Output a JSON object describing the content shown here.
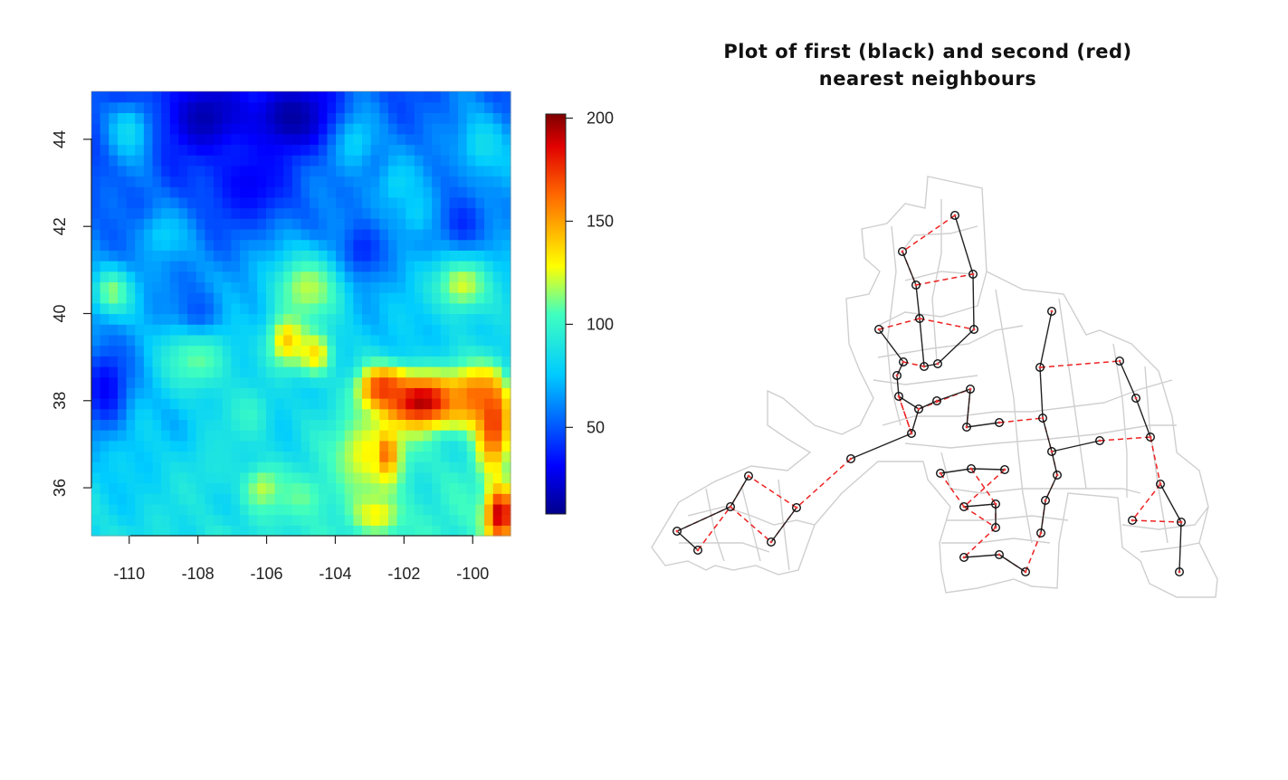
{
  "chart_data": [
    {
      "type": "heatmap",
      "title": "",
      "xlabel": "",
      "ylabel": "",
      "xlim": [
        -111.1,
        -98.9
      ],
      "ylim": [
        34.9,
        45.1
      ],
      "x_ticks": [
        -110,
        -108,
        -106,
        -104,
        -102,
        -100
      ],
      "x_tick_labels": [
        "-110",
        "-108",
        "-106",
        "-104",
        "-102",
        "-100"
      ],
      "y_ticks": [
        36,
        38,
        40,
        42,
        44
      ],
      "y_tick_labels": [
        "36",
        "38",
        "40",
        "42",
        "44"
      ],
      "grid": false,
      "colorbar": {
        "placement": "right",
        "range": [
          8,
          202
        ],
        "ticks": [
          50,
          100,
          150,
          200
        ],
        "tick_labels": [
          "50",
          "100",
          "150",
          "200"
        ]
      },
      "grid_size": {
        "cols": 48,
        "rows": 42
      },
      "hotspots": [
        {
          "lon": -101.5,
          "lat": 38.0,
          "value": 195,
          "sx": 0.9,
          "sy": 0.45
        },
        {
          "lon": -102.6,
          "lat": 38.3,
          "value": 175,
          "sx": 0.5,
          "sy": 0.35
        },
        {
          "lon": -100.0,
          "lat": 38.1,
          "value": 160,
          "sx": 0.5,
          "sy": 0.45
        },
        {
          "lon": -99.4,
          "lat": 37.5,
          "value": 175,
          "sx": 0.35,
          "sy": 0.8
        },
        {
          "lon": -99.2,
          "lat": 35.4,
          "value": 195,
          "sx": 0.3,
          "sy": 0.45
        },
        {
          "lon": -102.5,
          "lat": 36.8,
          "value": 165,
          "sx": 0.25,
          "sy": 0.45
        },
        {
          "lon": -105.4,
          "lat": 39.4,
          "value": 140,
          "sx": 0.4,
          "sy": 0.45
        },
        {
          "lon": -104.6,
          "lat": 39.1,
          "value": 135,
          "sx": 0.4,
          "sy": 0.4
        },
        {
          "lon": -103.0,
          "lat": 36.8,
          "value": 130,
          "sx": 0.8,
          "sy": 0.7
        },
        {
          "lon": -100.3,
          "lat": 40.7,
          "value": 125,
          "sx": 0.6,
          "sy": 0.5
        },
        {
          "lon": -104.8,
          "lat": 40.6,
          "value": 120,
          "sx": 0.8,
          "sy": 0.6
        },
        {
          "lon": -108.0,
          "lat": 39.0,
          "value": 110,
          "sx": 0.8,
          "sy": 0.6
        },
        {
          "lon": -110.5,
          "lat": 40.5,
          "value": 115,
          "sx": 0.45,
          "sy": 0.4
        },
        {
          "lon": -106.5,
          "lat": 37.7,
          "value": 100,
          "sx": 0.5,
          "sy": 0.5
        },
        {
          "lon": -106.1,
          "lat": 36.0,
          "value": 120,
          "sx": 0.4,
          "sy": 0.35
        },
        {
          "lon": -102.8,
          "lat": 35.4,
          "value": 130,
          "sx": 0.5,
          "sy": 0.3
        },
        {
          "lon": -105.0,
          "lat": 35.8,
          "value": 110,
          "sx": 0.6,
          "sy": 0.4
        },
        {
          "lon": -110.0,
          "lat": 44.2,
          "value": 85,
          "sx": 0.5,
          "sy": 0.5
        },
        {
          "lon": -103.5,
          "lat": 44.0,
          "value": 85,
          "sx": 0.5,
          "sy": 0.5
        },
        {
          "lon": -99.7,
          "lat": 43.9,
          "value": 85,
          "sx": 0.5,
          "sy": 0.5
        },
        {
          "lon": -101.6,
          "lat": 42.3,
          "value": 80,
          "sx": 0.4,
          "sy": 0.4
        },
        {
          "lon": -109.0,
          "lat": 41.8,
          "value": 78,
          "sx": 0.5,
          "sy": 0.4
        },
        {
          "lon": -102.2,
          "lat": 43.0,
          "value": 80,
          "sx": 0.4,
          "sy": 0.4
        },
        {
          "lon": -107.5,
          "lat": 36.5,
          "value": 90,
          "sx": 0.6,
          "sy": 0.5
        }
      ],
      "lows": [
        {
          "lon": -107.8,
          "lat": 44.5,
          "value": 15,
          "sx": 0.8,
          "sy": 0.6
        },
        {
          "lon": -105.3,
          "lat": 44.5,
          "value": 12,
          "sx": 0.9,
          "sy": 0.6
        },
        {
          "lon": -106.5,
          "lat": 43.0,
          "value": 30,
          "sx": 0.9,
          "sy": 0.7
        },
        {
          "lon": -110.7,
          "lat": 38.3,
          "value": 30,
          "sx": 0.5,
          "sy": 0.7
        },
        {
          "lon": -103.2,
          "lat": 41.5,
          "value": 40,
          "sx": 0.5,
          "sy": 0.5
        },
        {
          "lon": -100.3,
          "lat": 42.1,
          "value": 40,
          "sx": 0.5,
          "sy": 0.5
        },
        {
          "lon": -108.0,
          "lat": 40.1,
          "value": 50,
          "sx": 0.5,
          "sy": 0.4
        }
      ]
    },
    {
      "type": "network",
      "title": "Plot of first (black) and second (red)\nnearest neighbours",
      "title_lines": [
        "Plot of first (black) and second (red)",
        "nearest neighbours"
      ],
      "colors": {
        "first": "#222222",
        "second": "#ee2222",
        "boundary": "#cfcfcf"
      },
      "points": [
        [
          1055,
          238
        ],
        [
          997,
          278
        ],
        [
          1075,
          303
        ],
        [
          1012,
          315
        ],
        [
          1016,
          352
        ],
        [
          971,
          364
        ],
        [
          1076,
          364
        ],
        [
          1162,
          344
        ],
        [
          998,
          400
        ],
        [
          1021,
          405
        ],
        [
          1036,
          402
        ],
        [
          991,
          415
        ],
        [
          1149,
          406
        ],
        [
          1237,
          399
        ],
        [
          993,
          438
        ],
        [
          1015,
          452
        ],
        [
          1035,
          443
        ],
        [
          1072,
          430
        ],
        [
          1255,
          440
        ],
        [
          1068,
          472
        ],
        [
          1104,
          467
        ],
        [
          1152,
          462
        ],
        [
          1007,
          479
        ],
        [
          1162,
          499
        ],
        [
          1215,
          487
        ],
        [
          1271,
          483
        ],
        [
          940,
          507
        ],
        [
          1039,
          523
        ],
        [
          1073,
          518
        ],
        [
          1110,
          519
        ],
        [
          1168,
          525
        ],
        [
          827,
          526
        ],
        [
          1282,
          535
        ],
        [
          807,
          560
        ],
        [
          880,
          561
        ],
        [
          1065,
          560
        ],
        [
          1100,
          557
        ],
        [
          1155,
          553
        ],
        [
          1251,
          575
        ],
        [
          1305,
          577
        ],
        [
          1100,
          583
        ],
        [
          748,
          587
        ],
        [
          1150,
          589
        ],
        [
          852,
          599
        ],
        [
          771,
          608
        ],
        [
          1065,
          616
        ],
        [
          1104,
          613
        ],
        [
          1133,
          632
        ],
        [
          1303,
          632
        ]
      ],
      "first_neighbours": [
        [
          0,
          2
        ],
        [
          1,
          3
        ],
        [
          3,
          4
        ],
        [
          2,
          6
        ],
        [
          5,
          8
        ],
        [
          4,
          9
        ],
        [
          9,
          10
        ],
        [
          10,
          6
        ],
        [
          8,
          11
        ],
        [
          11,
          14
        ],
        [
          14,
          15
        ],
        [
          15,
          16
        ],
        [
          16,
          17
        ],
        [
          15,
          22
        ],
        [
          17,
          19
        ],
        [
          19,
          20
        ],
        [
          12,
          7
        ],
        [
          12,
          21
        ],
        [
          21,
          23
        ],
        [
          23,
          24
        ],
        [
          13,
          18
        ],
        [
          18,
          25
        ],
        [
          23,
          30
        ],
        [
          30,
          37
        ],
        [
          37,
          42
        ],
        [
          27,
          28
        ],
        [
          28,
          29
        ],
        [
          26,
          22
        ],
        [
          31,
          33
        ],
        [
          33,
          41
        ],
        [
          41,
          44
        ],
        [
          34,
          43
        ],
        [
          32,
          39
        ],
        [
          39,
          48
        ],
        [
          35,
          36
        ],
        [
          36,
          40
        ],
        [
          45,
          46
        ],
        [
          46,
          47
        ]
      ],
      "second_neighbours": [
        [
          0,
          1
        ],
        [
          1,
          3
        ],
        [
          3,
          2
        ],
        [
          4,
          6
        ],
        [
          5,
          4
        ],
        [
          8,
          9
        ],
        [
          11,
          8
        ],
        [
          14,
          22
        ],
        [
          15,
          17
        ],
        [
          17,
          19
        ],
        [
          20,
          21
        ],
        [
          12,
          13
        ],
        [
          24,
          25
        ],
        [
          25,
          32
        ],
        [
          32,
          38
        ],
        [
          38,
          39
        ],
        [
          21,
          23
        ],
        [
          23,
          30
        ],
        [
          30,
          37
        ],
        [
          37,
          42
        ],
        [
          42,
          47
        ],
        [
          47,
          46
        ],
        [
          26,
          34
        ],
        [
          34,
          31
        ],
        [
          31,
          33
        ],
        [
          33,
          43
        ],
        [
          43,
          34
        ],
        [
          41,
          33
        ],
        [
          44,
          33
        ],
        [
          27,
          35
        ],
        [
          35,
          40
        ],
        [
          36,
          40
        ],
        [
          40,
          45
        ],
        [
          28,
          36
        ],
        [
          29,
          35
        ],
        [
          22,
          14
        ]
      ]
    }
  ]
}
